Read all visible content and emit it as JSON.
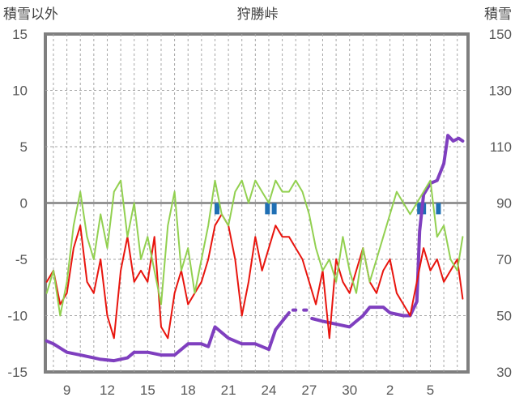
{
  "chart_data": {
    "type": "line",
    "title": "狩勝峠",
    "ylabel_left": "積雪以外",
    "ylabel_right": "積雪",
    "ylim_left": [
      -15,
      15
    ],
    "yticks_left": [
      15,
      10,
      5,
      0,
      -5,
      -10,
      -15
    ],
    "ylim_right": [
      30,
      150
    ],
    "yticks_right": [
      150,
      130,
      110,
      90,
      70,
      50,
      30
    ],
    "xlim_days": [
      7.4,
      6.8
    ],
    "xtick_labels": [
      "9",
      "12",
      "15",
      "18",
      "21",
      "24",
      "27",
      "30",
      "2",
      "5"
    ],
    "grid": true,
    "series": [
      {
        "color": "#7f3fbf",
        "axis": "right",
        "segments": [
          [
            [
              7.5,
              41
            ],
            [
              8.0,
              40
            ],
            [
              9.0,
              37
            ],
            [
              10.0,
              36
            ],
            [
              11.0,
              35
            ],
            [
              11.5,
              34.5
            ],
            [
              12.5,
              34
            ],
            [
              13.5,
              35
            ],
            [
              14.0,
              37
            ],
            [
              15.0,
              37
            ],
            [
              16.0,
              36
            ],
            [
              17.0,
              36
            ],
            [
              17.5,
              38
            ],
            [
              18.0,
              40
            ],
            [
              19.0,
              40
            ],
            [
              19.5,
              39
            ],
            [
              20.0,
              46
            ],
            [
              21.0,
              42
            ],
            [
              22.0,
              40
            ],
            [
              23.0,
              40
            ],
            [
              24.0,
              38
            ],
            [
              24.5,
              45
            ],
            [
              25.0,
              48
            ],
            [
              25.5,
              51
            ]
          ],
          [
            [
              25.8,
              52
            ],
            [
              26.0,
              52
            ]
          ],
          [
            [
              26.6,
              52
            ],
            [
              26.8,
              52
            ]
          ],
          [
            [
              27.2,
              49
            ],
            [
              28.0,
              48
            ],
            [
              29.0,
              47
            ],
            [
              30.0,
              46
            ],
            [
              30.5,
              48
            ],
            [
              31.0,
              50
            ],
            [
              31.5,
              53
            ],
            [
              32.5,
              53
            ],
            [
              33.0,
              51
            ],
            [
              34.0,
              50
            ],
            [
              34.5,
              50
            ],
            [
              35.0,
              55
            ],
            [
              35.2,
              80
            ],
            [
              35.5,
              93
            ],
            [
              36.0,
              97
            ],
            [
              36.5,
              98
            ],
            [
              37.0,
              104
            ],
            [
              37.3,
              114
            ],
            [
              37.7,
              112
            ],
            [
              38.1,
              113
            ],
            [
              38.4,
              112
            ]
          ]
        ]
      },
      {
        "color": "#e8150e",
        "axis": "left",
        "points": [
          [
            7.5,
            -7
          ],
          [
            8.0,
            -6
          ],
          [
            8.5,
            -9
          ],
          [
            9.0,
            -8
          ],
          [
            9.5,
            -4
          ],
          [
            10.0,
            -2
          ],
          [
            10.5,
            -7
          ],
          [
            11.0,
            -8
          ],
          [
            11.5,
            -5
          ],
          [
            12.0,
            -10
          ],
          [
            12.5,
            -12
          ],
          [
            13.0,
            -6
          ],
          [
            13.5,
            -3
          ],
          [
            14.0,
            -7
          ],
          [
            14.5,
            -6
          ],
          [
            15.0,
            -7
          ],
          [
            15.5,
            -3
          ],
          [
            16.0,
            -11
          ],
          [
            16.5,
            -12
          ],
          [
            17.0,
            -8
          ],
          [
            17.5,
            -6
          ],
          [
            18.0,
            -9
          ],
          [
            18.5,
            -8
          ],
          [
            19.0,
            -7
          ],
          [
            19.5,
            -5
          ],
          [
            20.0,
            -2
          ],
          [
            20.5,
            -1
          ],
          [
            21.0,
            -2
          ],
          [
            21.5,
            -5
          ],
          [
            22.0,
            -10
          ],
          [
            22.5,
            -7
          ],
          [
            23.0,
            -3
          ],
          [
            23.5,
            -6
          ],
          [
            24.0,
            -4
          ],
          [
            24.5,
            -2
          ],
          [
            25.0,
            -3
          ],
          [
            25.5,
            -3
          ],
          [
            26.0,
            -4
          ],
          [
            26.5,
            -5
          ],
          [
            27.0,
            -7
          ],
          [
            27.5,
            -9
          ],
          [
            28.0,
            -6
          ],
          [
            28.5,
            -12
          ],
          [
            29.0,
            -5
          ],
          [
            29.5,
            -7
          ],
          [
            30.0,
            -8
          ],
          [
            30.5,
            -6
          ],
          [
            31.0,
            -4
          ],
          [
            31.5,
            -7
          ],
          [
            32.0,
            -8
          ],
          [
            32.5,
            -6
          ],
          [
            33.0,
            -5
          ],
          [
            33.5,
            -8
          ],
          [
            34.0,
            -9
          ],
          [
            34.5,
            -10
          ],
          [
            35.0,
            -7
          ],
          [
            35.5,
            -4
          ],
          [
            36.0,
            -6
          ],
          [
            36.5,
            -5
          ],
          [
            37.0,
            -7
          ],
          [
            37.5,
            -6
          ],
          [
            38.0,
            -5
          ],
          [
            38.4,
            -8.5
          ]
        ]
      },
      {
        "color": "#92d050",
        "axis": "left",
        "points": [
          [
            7.5,
            -8
          ],
          [
            8.0,
            -6
          ],
          [
            8.5,
            -10
          ],
          [
            9.0,
            -7
          ],
          [
            9.5,
            -2
          ],
          [
            10.0,
            1
          ],
          [
            10.5,
            -3
          ],
          [
            11.0,
            -5
          ],
          [
            11.5,
            -1
          ],
          [
            12.0,
            -4
          ],
          [
            12.5,
            1
          ],
          [
            13.0,
            2
          ],
          [
            13.5,
            -3
          ],
          [
            14.0,
            0
          ],
          [
            14.5,
            -5
          ],
          [
            15.0,
            -3
          ],
          [
            15.5,
            -6
          ],
          [
            16.0,
            -9
          ],
          [
            16.5,
            -2
          ],
          [
            17.0,
            1
          ],
          [
            17.5,
            -6
          ],
          [
            18.0,
            -4
          ],
          [
            18.5,
            -8
          ],
          [
            19.0,
            -5
          ],
          [
            19.5,
            -2
          ],
          [
            20.0,
            2
          ],
          [
            20.5,
            -1
          ],
          [
            21.0,
            -2
          ],
          [
            21.5,
            1
          ],
          [
            22.0,
            2
          ],
          [
            22.5,
            0
          ],
          [
            23.0,
            2
          ],
          [
            23.5,
            1
          ],
          [
            24.0,
            0
          ],
          [
            24.5,
            2
          ],
          [
            25.0,
            1
          ],
          [
            25.5,
            1
          ],
          [
            26.0,
            2
          ],
          [
            26.5,
            1
          ],
          [
            27.0,
            -1
          ],
          [
            27.5,
            -4
          ],
          [
            28.0,
            -6
          ],
          [
            28.5,
            -5
          ],
          [
            29.0,
            -7
          ],
          [
            29.5,
            -3
          ],
          [
            30.0,
            -6
          ],
          [
            30.5,
            -8
          ],
          [
            31.0,
            -4
          ],
          [
            31.5,
            -7
          ],
          [
            32.0,
            -5
          ],
          [
            32.5,
            -3
          ],
          [
            33.0,
            -1
          ],
          [
            33.5,
            1
          ],
          [
            34.0,
            0
          ],
          [
            34.5,
            -1
          ],
          [
            35.0,
            0
          ],
          [
            35.5,
            1
          ],
          [
            36.0,
            2
          ],
          [
            36.5,
            -3
          ],
          [
            37.0,
            -2
          ],
          [
            37.5,
            -5
          ],
          [
            38.0,
            -6
          ],
          [
            38.4,
            -3
          ]
        ]
      },
      {
        "color": "#1f6fb4",
        "axis": "left",
        "type": "bars",
        "bars": [
          [
            20.15,
            -1.0
          ],
          [
            23.9,
            -1.0
          ],
          [
            24.4,
            -1.0
          ],
          [
            35.2,
            -1.0
          ],
          [
            35.5,
            -1.0
          ],
          [
            36.6,
            -1.0
          ]
        ]
      }
    ]
  }
}
